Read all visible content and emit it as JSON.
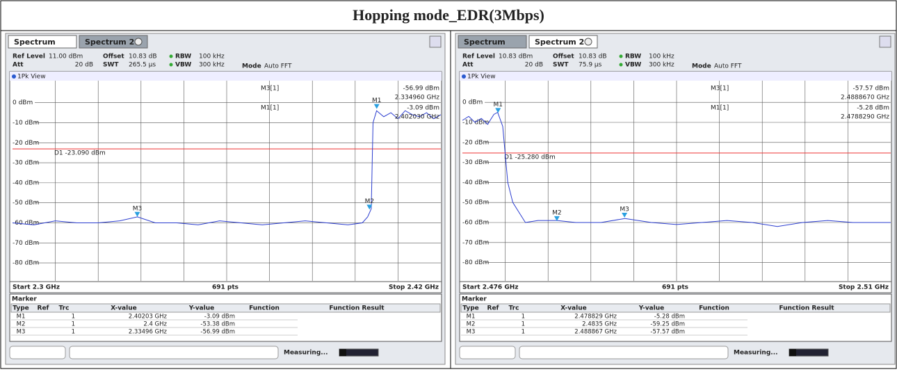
{
  "title": "Hopping mode_EDR(3Mbps)",
  "panels": [
    {
      "tabs": [
        "Spectrum",
        "Spectrum 2"
      ],
      "active_tab": 0,
      "settings": {
        "ref_level": [
          "Ref Level",
          "11.00 dBm"
        ],
        "offset": [
          "Offset",
          "10.83 dB"
        ],
        "rbw": [
          "RBW",
          "100 kHz"
        ],
        "att": [
          "Att",
          "20 dB"
        ],
        "swt": [
          "SWT",
          "265.5 µs"
        ],
        "vbw": [
          "VBW",
          "300 kHz"
        ],
        "mode": [
          "Mode",
          "Auto FFT"
        ]
      },
      "view": "1Pk View",
      "xlim": [
        2.3,
        2.42
      ],
      "ylim": [
        -89,
        11
      ],
      "yticks": [
        {
          "value": 0,
          "label": "0 dBm"
        },
        {
          "value": -10,
          "label": "-10 dBm"
        },
        {
          "value": -20,
          "label": "-20 dBm"
        },
        {
          "value": -30,
          "label": "-30 dBm"
        },
        {
          "value": -40,
          "label": "-40 dBm"
        },
        {
          "value": -50,
          "label": "-50 dBm"
        },
        {
          "value": -60,
          "label": "-60 dBm"
        },
        {
          "value": -70,
          "label": "-70 dBm"
        },
        {
          "value": -80,
          "label": "-80 dBm"
        }
      ],
      "display_line": {
        "value": -23.09,
        "label": "D1  -23.090 dBm"
      },
      "readout": [
        [
          "M3[1]",
          "-56.99 dBm",
          "2.334960 GHz"
        ],
        [
          "M1[1]",
          "-3.09 dBm",
          "2.402030 GHz"
        ]
      ],
      "trace": {
        "x": [
          2.3,
          2.306,
          2.312,
          2.318,
          2.324,
          2.33,
          2.335,
          2.34,
          2.346,
          2.352,
          2.358,
          2.364,
          2.37,
          2.376,
          2.382,
          2.388,
          2.394,
          2.398,
          2.3995,
          2.4005,
          2.401,
          2.402,
          2.404,
          2.406,
          2.408,
          2.41,
          2.412,
          2.414,
          2.416,
          2.418,
          2.42
        ],
        "y": [
          -60,
          -61,
          -59,
          -60,
          -60,
          -59,
          -57,
          -60,
          -60,
          -61,
          -59,
          -60,
          -61,
          -60,
          -59,
          -60,
          -61,
          -60,
          -57,
          -53,
          -10,
          -4,
          -7,
          -5,
          -8,
          -4,
          -6,
          -7,
          -5,
          -8,
          -6
        ]
      },
      "markers": [
        {
          "label": "M1",
          "x": 2.40203,
          "y": -3.09
        },
        {
          "label": "M2",
          "x": 2.4,
          "y": -53.38
        },
        {
          "label": "M3",
          "x": 2.33496,
          "y": -56.99
        }
      ],
      "start": "Start 2.3 GHz",
      "points": "691 pts",
      "stop": "Stop 2.42 GHz",
      "table_title": "Marker",
      "table_header": [
        "Type",
        "Ref",
        "Trc",
        "X-value",
        "Y-value",
        "Function",
        "Function Result"
      ],
      "table_rows": [
        [
          "M1",
          "1",
          "2.40203 GHz",
          "-3.09 dBm"
        ],
        [
          "M2",
          "1",
          "2.4 GHz",
          "-53.38 dBm"
        ],
        [
          "M3",
          "1",
          "2.33496 GHz",
          "-56.99 dBm"
        ]
      ],
      "status": "Measuring..."
    },
    {
      "tabs": [
        "Spectrum",
        "Spectrum 2"
      ],
      "active_tab": 1,
      "settings": {
        "ref_level": [
          "Ref Level",
          "10.83 dBm"
        ],
        "offset": [
          "Offset",
          "10.83 dB"
        ],
        "rbw": [
          "RBW",
          "100 kHz"
        ],
        "att": [
          "Att",
          "20 dB"
        ],
        "swt": [
          "SWT",
          "75.9 µs"
        ],
        "vbw": [
          "VBW",
          "300 kHz"
        ],
        "mode": [
          "Mode",
          "Auto FFT"
        ]
      },
      "view": "1Pk View",
      "xlim": [
        2.476,
        2.51
      ],
      "ylim": [
        -89.17,
        10.83
      ],
      "yticks": [
        {
          "value": 0,
          "label": "0 dBm"
        },
        {
          "value": -10,
          "label": "-10 dBm"
        },
        {
          "value": -20,
          "label": "-20 dBm"
        },
        {
          "value": -30,
          "label": "-30 dBm"
        },
        {
          "value": -40,
          "label": "-40 dBm"
        },
        {
          "value": -50,
          "label": "-50 dBm"
        },
        {
          "value": -60,
          "label": "-60 dBm"
        },
        {
          "value": -70,
          "label": "-70 dBm"
        },
        {
          "value": -80,
          "label": "-80 dBm"
        }
      ],
      "display_line": {
        "value": -25.28,
        "label": "D1  -25.280 dBm"
      },
      "readout": [
        [
          "M3[1]",
          "-57.57 dBm",
          "2.4888670 GHz"
        ],
        [
          "M1[1]",
          "-5.28 dBm",
          "2.4788290 GHz"
        ]
      ],
      "trace": {
        "x": [
          2.476,
          2.4765,
          2.477,
          2.4775,
          2.478,
          2.4785,
          2.4788,
          2.4792,
          2.4796,
          2.48,
          2.4805,
          2.481,
          2.482,
          2.4835,
          2.485,
          2.487,
          2.4889,
          2.491,
          2.493,
          2.495,
          2.497,
          2.499,
          2.501,
          2.503,
          2.505,
          2.507,
          2.509,
          2.51
        ],
        "y": [
          -9,
          -7,
          -10,
          -8,
          -11,
          -6,
          -5,
          -12,
          -40,
          -50,
          -55,
          -60,
          -59,
          -59,
          -60,
          -60,
          -58,
          -60,
          -61,
          -60,
          -59,
          -60,
          -62,
          -60,
          -59,
          -60,
          -60,
          -60
        ]
      },
      "markers": [
        {
          "label": "M1",
          "x": 2.478829,
          "y": -5.28
        },
        {
          "label": "M2",
          "x": 2.4835,
          "y": -59.25
        },
        {
          "label": "M3",
          "x": 2.488867,
          "y": -57.57
        }
      ],
      "start": "Start 2.476 GHz",
      "points": "691 pts",
      "stop": "Stop 2.51 GHz",
      "table_title": "Marker",
      "table_header": [
        "Type",
        "Ref",
        "Trc",
        "X-value",
        "Y-value",
        "Function",
        "Function Result"
      ],
      "table_rows": [
        [
          "M1",
          "1",
          "2.478829 GHz",
          "-5.28 dBm"
        ],
        [
          "M2",
          "1",
          "2.4835 GHz",
          "-59.25 dBm"
        ],
        [
          "M3",
          "1",
          "2.488867 GHz",
          "-57.57 dBm"
        ]
      ],
      "status": "Measuring..."
    }
  ]
}
